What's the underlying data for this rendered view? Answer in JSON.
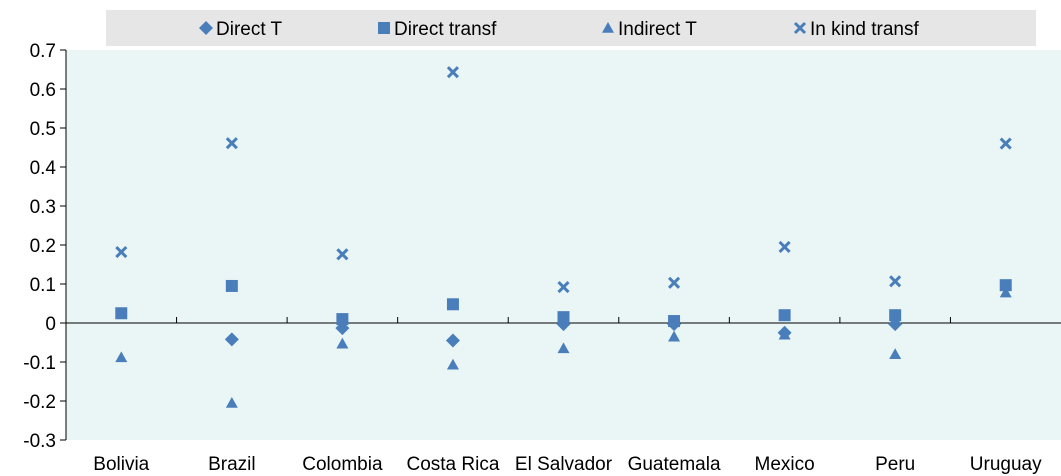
{
  "chart_data": {
    "type": "scatter",
    "categories": [
      "Bolivia",
      "Brazil",
      "Colombia",
      "Costa Rica",
      "El Salvador",
      "Guatemala",
      "Mexico",
      "Peru",
      "Uruguay"
    ],
    "series": [
      {
        "name": "Direct T",
        "marker": "diamond",
        "values": [
          null,
          -0.042,
          -0.013,
          -0.045,
          -0.003,
          -0.003,
          -0.025,
          -0.003,
          null
        ]
      },
      {
        "name": "Direct transf",
        "marker": "square",
        "values": [
          0.025,
          0.095,
          0.01,
          0.048,
          0.015,
          0.005,
          0.02,
          0.02,
          0.097
        ]
      },
      {
        "name": "Indirect T",
        "marker": "triangle",
        "values": [
          -0.088,
          -0.205,
          -0.053,
          -0.107,
          -0.065,
          -0.035,
          -0.03,
          -0.08,
          0.078
        ]
      },
      {
        "name": "In kind transf",
        "marker": "x",
        "values": [
          0.182,
          0.461,
          0.176,
          0.643,
          0.092,
          0.103,
          0.195,
          0.107,
          0.46
        ]
      }
    ],
    "ylim": [
      -0.3,
      0.7
    ],
    "yticks": [
      "-0.3",
      "-0.2",
      "-0.1",
      "0",
      "0.1",
      "0.2",
      "0.3",
      "0.4",
      "0.5",
      "0.6",
      "0.7"
    ],
    "title": "",
    "xlabel": "",
    "ylabel": "",
    "legend_position": "top",
    "grid": false,
    "colors": {
      "marker": "#4a7ebb",
      "plot_background": "#eaf6f6",
      "legend_background": "#e6e6e6",
      "axis": "#000000"
    }
  }
}
